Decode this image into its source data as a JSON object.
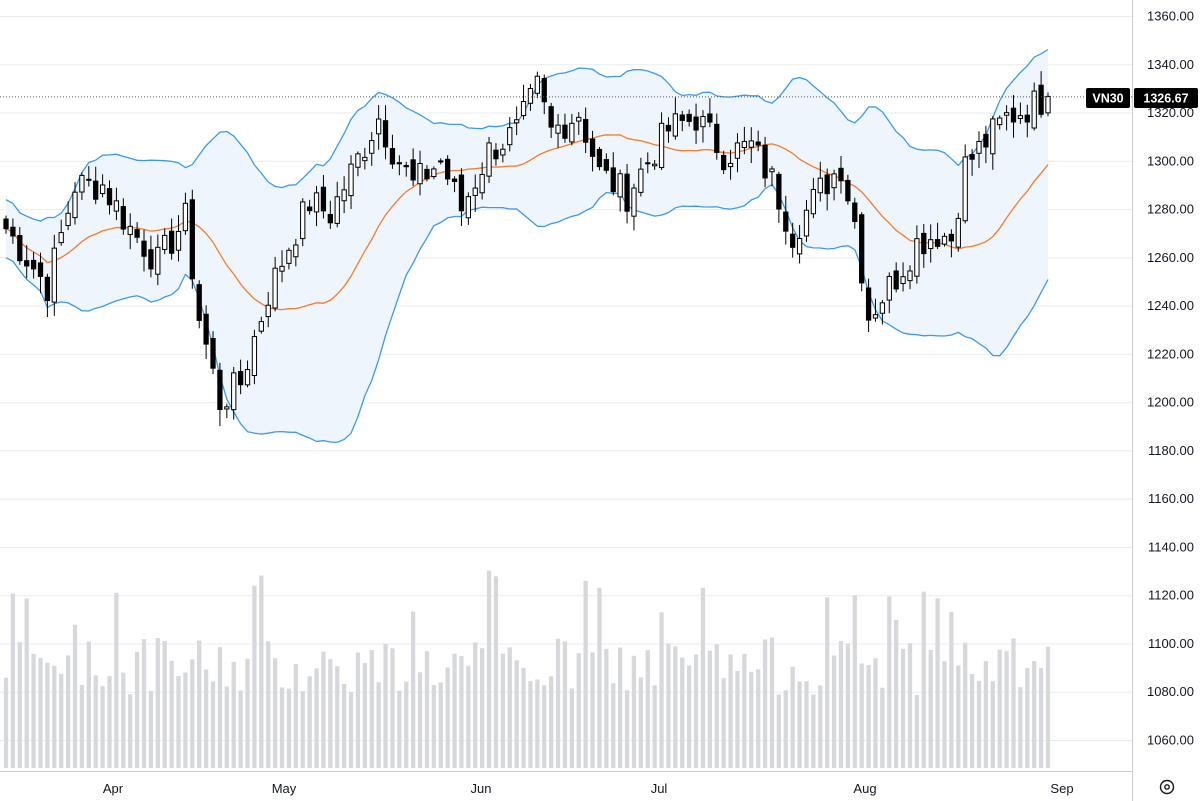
{
  "chart_data": {
    "type": "candlestick",
    "symbol": "VN30",
    "last_price": "1326.67",
    "last_value": 1326.67,
    "price_axis": {
      "min": 1050,
      "max": 1366,
      "ticks": [
        "1360.00",
        "1340.00",
        "1320.00",
        "1300.00",
        "1280.00",
        "1260.00",
        "1240.00",
        "1220.00",
        "1200.00",
        "1180.00",
        "1160.00",
        "1140.00",
        "1120.00",
        "1100.00",
        "1080.00",
        "1060.00"
      ]
    },
    "time_axis": [
      "Apr",
      "May",
      "Jun",
      "Jul",
      "Aug",
      "Sep"
    ],
    "grid": true,
    "colors": {
      "up": "#ffffff",
      "down": "#000000",
      "wick": "#000000",
      "band": "#3d9ae8",
      "band_fill": "#eef5fc",
      "basis": "#f57c2c",
      "volume": "#d6d8dc",
      "grid": "#e9ebee",
      "badge": "#000000"
    },
    "settings_icon": "gear-icon"
  }
}
